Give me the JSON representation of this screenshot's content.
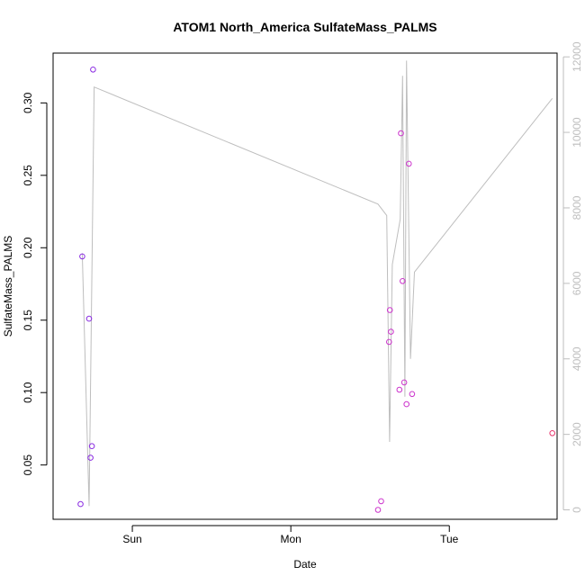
{
  "chart_data": {
    "type": "scatter",
    "title": "ATOM1 North_America SulfateMass_PALMS",
    "xlabel": "Date",
    "ylabel": "SulfateMass_PALMS",
    "y2label": "",
    "xlim": [
      -0.5,
      2.68
    ],
    "ylim": [
      0.0125,
      0.3344
    ],
    "y2lim": [
      -250,
      12100
    ],
    "x_ticks": [
      {
        "value": 0,
        "label": "Sun"
      },
      {
        "value": 1,
        "label": "Mon"
      },
      {
        "value": 2,
        "label": "Tue"
      }
    ],
    "y_ticks": [
      {
        "value": 0.05,
        "label": "0.05"
      },
      {
        "value": 0.1,
        "label": "0.10"
      },
      {
        "value": 0.15,
        "label": "0.15"
      },
      {
        "value": 0.2,
        "label": "0.20"
      },
      {
        "value": 0.25,
        "label": "0.25"
      },
      {
        "value": 0.3,
        "label": "0.30"
      }
    ],
    "y2_ticks": [
      {
        "value": 0,
        "label": "0"
      },
      {
        "value": 2000,
        "label": "2000"
      },
      {
        "value": 4000,
        "label": "4000"
      },
      {
        "value": 6000,
        "label": "6000"
      },
      {
        "value": 8000,
        "label": "8000"
      },
      {
        "value": 10000,
        "label": "10000"
      },
      {
        "value": 12000,
        "label": "12000"
      }
    ],
    "points": [
      {
        "x": -0.327,
        "y": 0.023,
        "color": "#8a2be2"
      },
      {
        "x": -0.316,
        "y": 0.194,
        "color": "#8a2be2"
      },
      {
        "x": -0.273,
        "y": 0.151,
        "color": "#8a2be2"
      },
      {
        "x": -0.264,
        "y": 0.055,
        "color": "#8a2be2"
      },
      {
        "x": -0.255,
        "y": 0.063,
        "color": "#8a2be2"
      },
      {
        "x": -0.248,
        "y": 0.323,
        "color": "#8a2be2"
      },
      {
        "x": 1.55,
        "y": 0.019,
        "color": "#cc33cc"
      },
      {
        "x": 1.57,
        "y": 0.025,
        "color": "#cc33cc"
      },
      {
        "x": 1.62,
        "y": 0.135,
        "color": "#cc33cc"
      },
      {
        "x": 1.625,
        "y": 0.157,
        "color": "#cc33cc"
      },
      {
        "x": 1.632,
        "y": 0.142,
        "color": "#cc33cc"
      },
      {
        "x": 1.685,
        "y": 0.102,
        "color": "#cc33cc"
      },
      {
        "x": 1.695,
        "y": 0.279,
        "color": "#cc33cc"
      },
      {
        "x": 1.705,
        "y": 0.177,
        "color": "#cc33cc"
      },
      {
        "x": 1.715,
        "y": 0.107,
        "color": "#cc33cc"
      },
      {
        "x": 1.73,
        "y": 0.092,
        "color": "#cc33cc"
      },
      {
        "x": 1.745,
        "y": 0.258,
        "color": "#cc33cc"
      },
      {
        "x": 1.765,
        "y": 0.099,
        "color": "#cc33cc"
      },
      {
        "x": 2.65,
        "y": 0.072,
        "color": "#e6336b"
      }
    ],
    "line_series": {
      "color": "#bebebe",
      "axis": "right",
      "x": [
        -0.316,
        -0.273,
        -0.241,
        1.55,
        1.605,
        1.623,
        1.64,
        1.69,
        1.705,
        1.72,
        1.73,
        1.755,
        1.78,
        2.65
      ],
      "y": [
        6800,
        100,
        11200,
        8100,
        7800,
        1800,
        6500,
        7700,
        11500,
        3000,
        11900,
        4000,
        6300,
        10900
      ]
    }
  }
}
